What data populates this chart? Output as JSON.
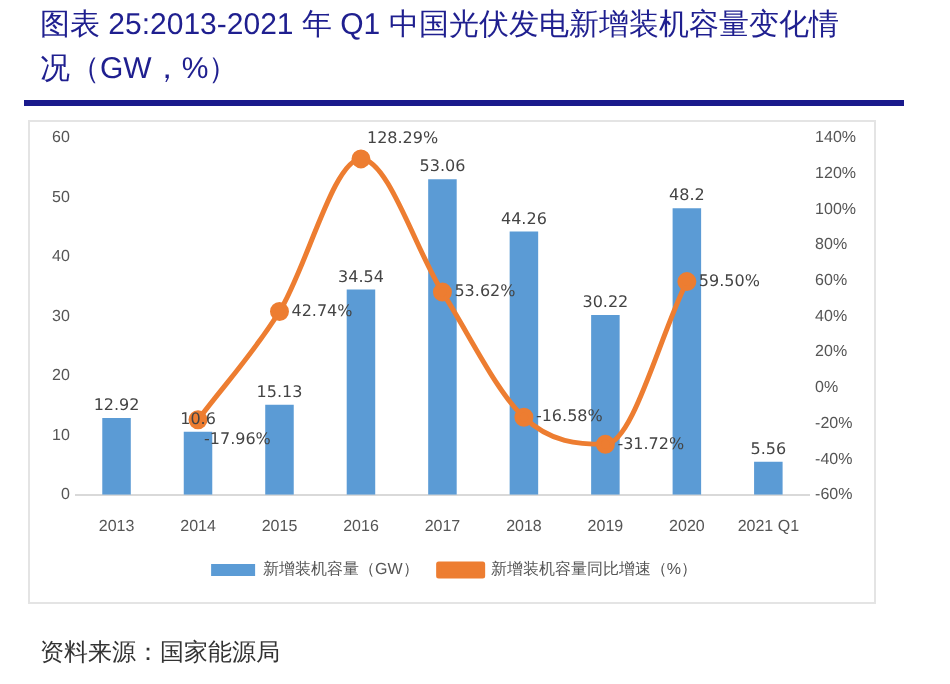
{
  "chart_data": {
    "type": "bar",
    "title": "图表 25:2013-2021 年 Q1 中国光伏发电新增装机容量变化情况（GW，%）",
    "categories": [
      "2013",
      "2014",
      "2015",
      "2016",
      "2017",
      "2018",
      "2019",
      "2020",
      "2021 Q1"
    ],
    "series": [
      {
        "name": "新增装机容量（GW）",
        "color": "#5b9bd5",
        "values": [
          12.92,
          10.6,
          15.13,
          34.54,
          53.06,
          44.26,
          30.22,
          48.2,
          5.56
        ],
        "value_labels": [
          "12.92",
          "10.6",
          "15.13",
          "34.54",
          "53.06",
          "44.26",
          "30.22",
          "48.2",
          "5.56"
        ]
      },
      {
        "name": "新增装机容量同比增速（%）",
        "type": "line",
        "axis": "y2",
        "color": "#ed7d31",
        "values": [
          null,
          -17.96,
          42.74,
          128.29,
          53.62,
          -16.58,
          -31.72,
          59.5,
          null
        ],
        "value_labels": [
          null,
          "-17.96%",
          "42.74%",
          "128.29%",
          "53.62%",
          "-16.58%",
          "-31.72%",
          "59.50%",
          null
        ]
      }
    ],
    "ylim": [
      0,
      60
    ],
    "yticks": [
      0,
      10,
      20,
      30,
      40,
      50,
      60
    ],
    "y2lim": [
      -60,
      140
    ],
    "y2ticks": [
      {
        "value": -60,
        "label": "-60%"
      },
      {
        "value": -40,
        "label": "-40%"
      },
      {
        "value": -20,
        "label": "-20%"
      },
      {
        "value": 0,
        "label": "0%"
      },
      {
        "value": 20,
        "label": "20%"
      },
      {
        "value": 40,
        "label": "40%"
      },
      {
        "value": 60,
        "label": "60%"
      },
      {
        "value": 80,
        "label": "80%"
      },
      {
        "value": 100,
        "label": "100%"
      },
      {
        "value": 120,
        "label": "120%"
      },
      {
        "value": 140,
        "label": "140%"
      }
    ],
    "grid": false,
    "legend": "bottom",
    "marker": "circle",
    "annotations": [
      "资料来源：国家能源局"
    ]
  }
}
